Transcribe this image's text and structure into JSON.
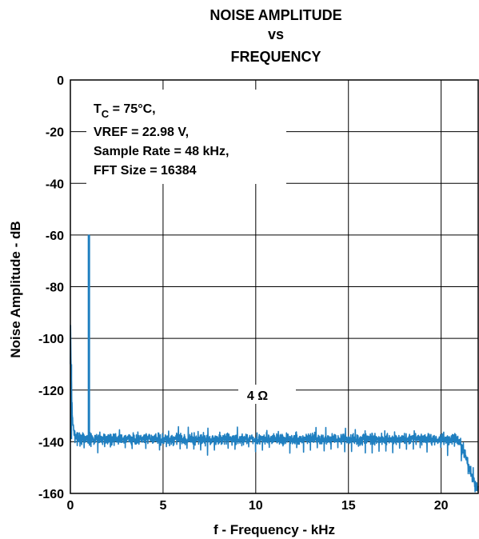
{
  "chart_data": {
    "type": "line",
    "title_lines": [
      "NOISE AMPLITUDE",
      "vs",
      "FREQUENCY"
    ],
    "xlabel": "f - Frequency - kHz",
    "ylabel": "Noise Amplitude - dB",
    "xlim": [
      0,
      22
    ],
    "ylim": [
      -160,
      0
    ],
    "x_ticks": [
      0,
      5,
      10,
      15,
      20
    ],
    "y_ticks": [
      0,
      -20,
      -40,
      -60,
      -80,
      -100,
      -120,
      -140,
      -160
    ],
    "x_tick_labels": [
      "0",
      "5",
      "10",
      "15",
      "20"
    ],
    "y_tick_labels": [
      "0",
      "-20",
      "-40",
      "-60",
      "-80",
      "-100",
      "-120",
      "-140",
      "-160"
    ],
    "grid": true,
    "conditions": {
      "tc_symbol": "T",
      "tc_sub": "C",
      "tc_value": " = 75°C,",
      "vref": "VREF = 22.98 V,",
      "sample_rate": "Sample Rate = 48 kHz,",
      "fft_size": "FFT Size = 16384"
    },
    "annotation": "4 Ω",
    "series": [
      {
        "color": "#1f7fc0",
        "noise_floor_db": -139,
        "peaks": [
          {
            "x": 0.0,
            "y": -110
          },
          {
            "x": 1.0,
            "y": -60
          }
        ],
        "rolloff": [
          {
            "x": 20.9,
            "y": -139
          },
          {
            "x": 21.3,
            "y": -145
          },
          {
            "x": 21.6,
            "y": -152
          },
          {
            "x": 21.9,
            "y": -158
          }
        ]
      }
    ]
  }
}
